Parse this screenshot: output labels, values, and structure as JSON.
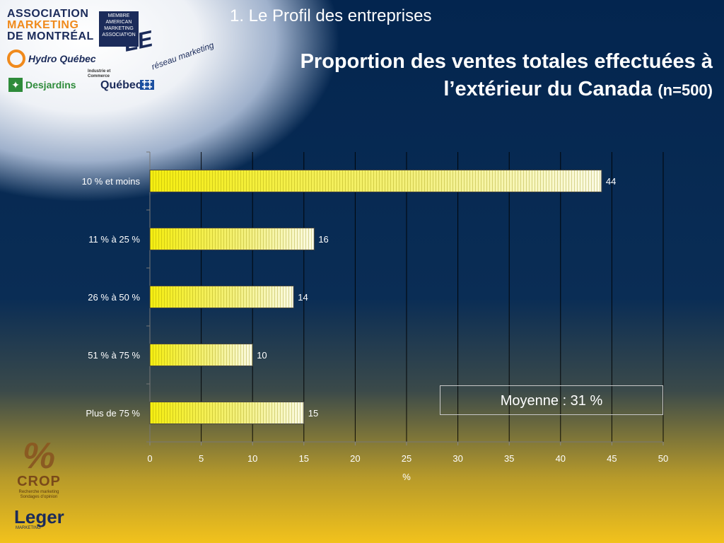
{
  "header": {
    "section_title": "1. Le Profil des entreprises",
    "main_title_line1": "Proportion des ventes totales effectuées à",
    "main_title_line2": "l’extérieur du Canada",
    "main_title_n": "(n=500)"
  },
  "logos": {
    "amm_line1": "ASSOCIATION",
    "amm_line2": "MARKETING",
    "amm_line3": "DE MONTRÉAL",
    "ama": "MEMBRE AMERICAN MARKETING ASSOCIATION",
    "le_logo": "LE",
    "le_sub": "réseau marketing",
    "hydro": "Hydro Québec",
    "desjardins": "Desjardins",
    "industrie": "Industrie et Commerce",
    "quebec": "Québec",
    "crop_name": "CROP",
    "crop_sub": "Recherche marketing Sondages d’opinion",
    "leger": "Leger",
    "leger_sub": "MARKETING"
  },
  "chart_data": {
    "type": "bar",
    "orientation": "horizontal",
    "categories": [
      "10 % et moins",
      "11 % à 25 %",
      "26 % à 50 %",
      "51 % à 75 %",
      "Plus de 75 %"
    ],
    "values": [
      44,
      16,
      14,
      10,
      15
    ],
    "xlabel": "%",
    "xlim": [
      0,
      50
    ],
    "xticks": [
      0,
      5,
      10,
      15,
      20,
      25,
      30,
      35,
      40,
      45,
      50
    ],
    "grid": "vertical",
    "bar_color": "#f2ea1a",
    "annotation": "Moyenne : 31 %"
  }
}
